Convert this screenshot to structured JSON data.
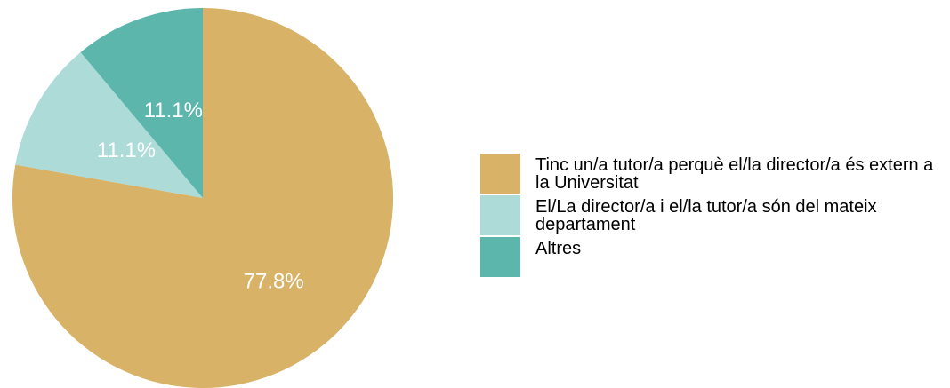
{
  "chart_data": {
    "type": "pie",
    "categories": [
      "Tinc un/a tutor/a perquè el/la director/a és extern a la Universitat",
      "El/La director/a i el/la tutor/a són del mateix departament",
      "Altres"
    ],
    "values": [
      77.8,
      11.1,
      11.1
    ],
    "value_labels": [
      "77.8%",
      "11.1%",
      "11.1%"
    ],
    "colors": [
      "#D8B266",
      "#ACDBD8",
      "#5CB6AC"
    ],
    "legend_position": "right",
    "start_angle": "top, clockwise"
  }
}
